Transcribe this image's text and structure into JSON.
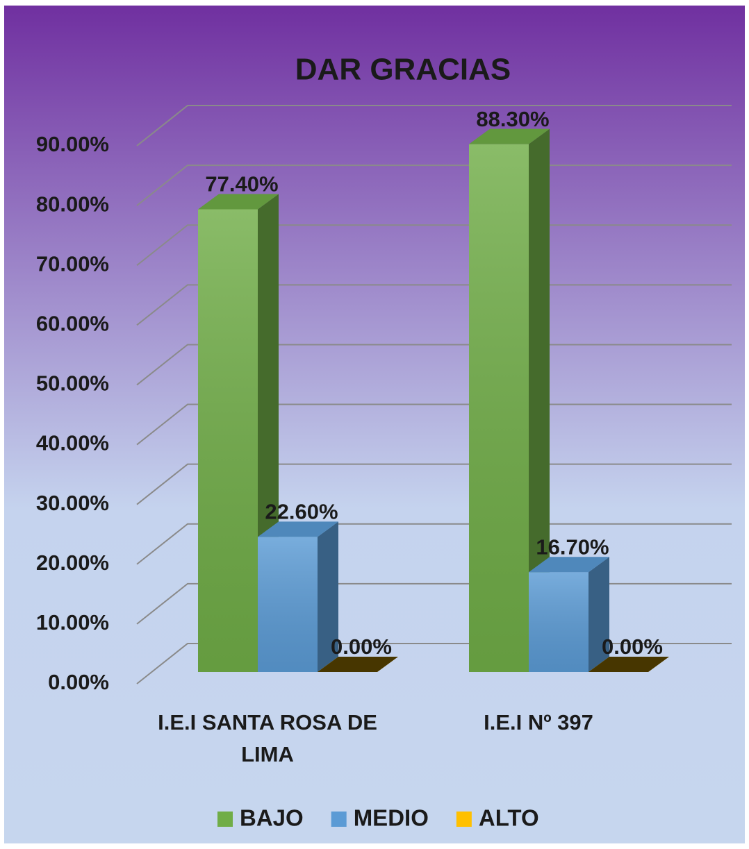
{
  "chart_data": {
    "type": "bar3d",
    "title": "DAR GRACIAS",
    "categories": [
      "I.E.I SANTA ROSA DE LIMA",
      "I.E.I Nº 397"
    ],
    "series": [
      {
        "name": "BAJO",
        "color": "#70ad47",
        "values": [
          77.4,
          88.3
        ],
        "value_labels": [
          "77.40%",
          "88.30%"
        ]
      },
      {
        "name": "MEDIO",
        "color": "#5b9bd5",
        "values": [
          22.6,
          16.7
        ],
        "value_labels": [
          "22.60%",
          "16.70%"
        ]
      },
      {
        "name": "ALTO",
        "color": "#ffc000",
        "values": [
          0,
          0
        ],
        "value_labels": [
          "0.00%",
          "0.00%"
        ]
      }
    ],
    "ylim": [
      0,
      90
    ],
    "yticks": [
      {
        "value": 0,
        "label": "0.00%"
      },
      {
        "value": 10,
        "label": "10.00%"
      },
      {
        "value": 20,
        "label": "20.00%"
      },
      {
        "value": 30,
        "label": "30.00%"
      },
      {
        "value": 40,
        "label": "40.00%"
      },
      {
        "value": 50,
        "label": "50.00%"
      },
      {
        "value": 60,
        "label": "60.00%"
      },
      {
        "value": 70,
        "label": "70.00%"
      },
      {
        "value": 80,
        "label": "80.00%"
      },
      {
        "value": 90,
        "label": "90.00%"
      }
    ],
    "grid": true,
    "legend": "bottom"
  }
}
